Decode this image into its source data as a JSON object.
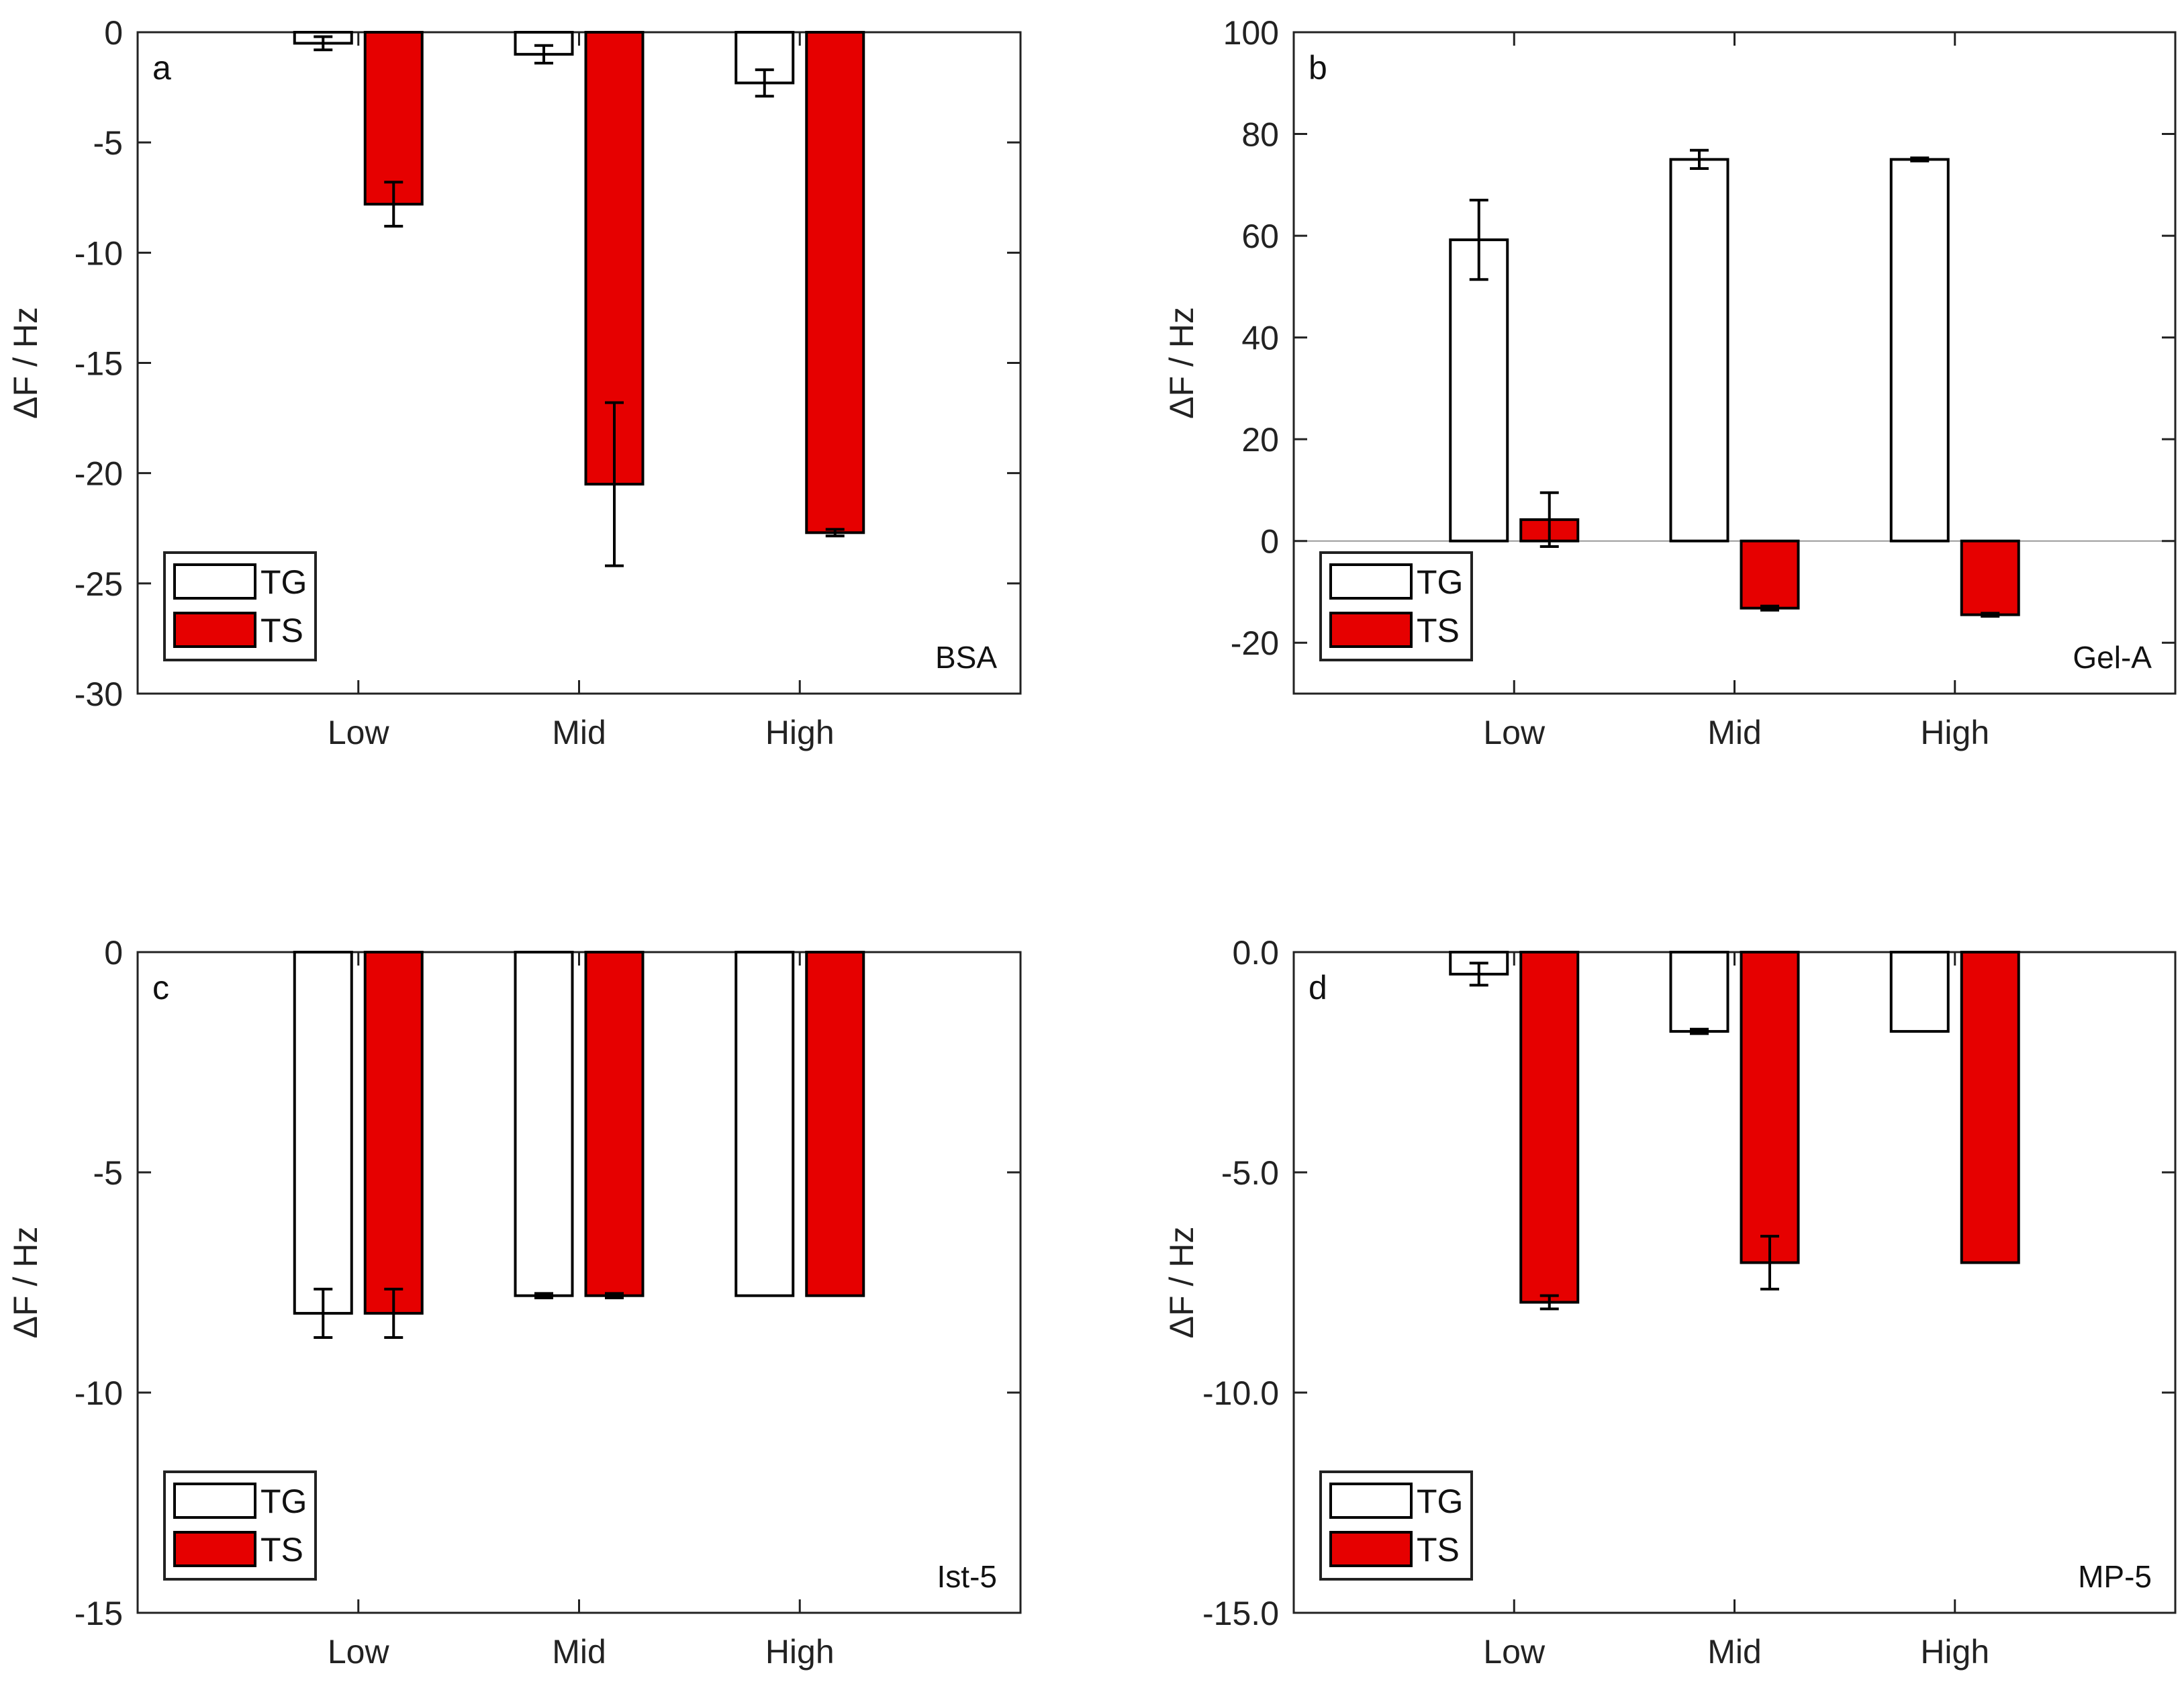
{
  "colors": {
    "TG": "#ffffff",
    "TS": "#e60000",
    "axis": "#222222",
    "zero_line": "#9a9a9a"
  },
  "chart_data": [
    {
      "type": "bar",
      "panel": "a",
      "sample": "BSA",
      "ylabel": "ΔF / Hz",
      "xlabel": "",
      "ylim": [
        -30,
        0
      ],
      "yticks": [
        0,
        -5,
        -10,
        -15,
        -20,
        -25,
        -30
      ],
      "ytick_labels": [
        "0",
        "-5",
        "-10",
        "-15",
        "-20",
        "-25",
        "-30"
      ],
      "categories": [
        "Low",
        "Mid",
        "High"
      ],
      "series": [
        {
          "name": "TG",
          "values": [
            -0.5,
            -1.0,
            -2.3
          ],
          "errors": [
            0.3,
            0.4,
            0.6
          ]
        },
        {
          "name": "TS",
          "values": [
            -7.8,
            -20.5,
            -22.7
          ],
          "errors": [
            1.0,
            3.7,
            0.15
          ]
        }
      ],
      "legend": {
        "position": "bottom-left",
        "entries": [
          "TG",
          "TS"
        ]
      },
      "zero_line": false
    },
    {
      "type": "bar",
      "panel": "b",
      "sample": "Gel-A",
      "ylabel": "ΔF / Hz",
      "xlabel": "",
      "ylim": [
        -30,
        100
      ],
      "yticks": [
        100,
        80,
        60,
        40,
        20,
        0,
        -20
      ],
      "ytick_labels": [
        "100",
        "80",
        "60",
        "40",
        "20",
        "0",
        "-20"
      ],
      "categories": [
        "Low",
        "Mid",
        "High"
      ],
      "series": [
        {
          "name": "TG",
          "values": [
            59.2,
            75.0,
            75.0
          ],
          "errors": [
            7.8,
            1.8,
            0.3
          ]
        },
        {
          "name": "TS",
          "values": [
            4.2,
            -13.2,
            -14.5
          ],
          "errors": [
            5.3,
            0.4,
            0.3
          ]
        }
      ],
      "legend": {
        "position": "bottom-left",
        "entries": [
          "TG",
          "TS"
        ]
      },
      "zero_line": true
    },
    {
      "type": "bar",
      "panel": "c",
      "sample": "Ist-5",
      "ylabel": "ΔF / Hz",
      "xlabel": "",
      "ylim": [
        -15,
        0
      ],
      "yticks": [
        0,
        -5,
        -10,
        -15
      ],
      "ytick_labels": [
        "0",
        "-5",
        "-10",
        "-15"
      ],
      "categories": [
        "Low",
        "Mid",
        "High"
      ],
      "series": [
        {
          "name": "TG",
          "values": [
            -8.2,
            -7.8,
            -7.8
          ],
          "errors": [
            0.55,
            0.05,
            0.0
          ]
        },
        {
          "name": "TS",
          "values": [
            -8.2,
            -7.8,
            -7.8
          ],
          "errors": [
            0.55,
            0.05,
            0.0
          ]
        }
      ],
      "legend": {
        "position": "bottom-left",
        "entries": [
          "TG",
          "TS"
        ]
      },
      "zero_line": false
    },
    {
      "type": "bar",
      "panel": "d",
      "sample": "MP-5",
      "ylabel": "ΔF / Hz",
      "xlabel": "",
      "ylim": [
        -15,
        0
      ],
      "yticks": [
        0,
        -5,
        -10,
        -15
      ],
      "ytick_labels": [
        "0.0",
        "-5.0",
        "-10.0",
        "-15.0"
      ],
      "categories": [
        "Low",
        "Mid",
        "High"
      ],
      "series": [
        {
          "name": "TG",
          "values": [
            -0.5,
            -1.8,
            -1.8
          ],
          "errors": [
            0.25,
            0.05,
            0.0
          ]
        },
        {
          "name": "TS",
          "values": [
            -7.95,
            -7.05,
            -7.05
          ],
          "errors": [
            0.15,
            0.6,
            0.0
          ]
        }
      ],
      "legend": {
        "position": "bottom-left",
        "entries": [
          "TG",
          "TS"
        ]
      },
      "zero_line": false
    }
  ]
}
